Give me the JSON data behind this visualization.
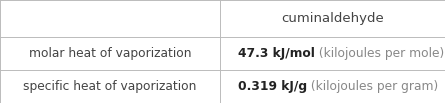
{
  "title": "cuminaldehyde",
  "rows": [
    {
      "label": "molar heat of vaporization",
      "value_bold": "47.3 kJ/mol",
      "value_light": " (kilojoules per mole)"
    },
    {
      "label": "specific heat of vaporization",
      "value_bold": "0.319 kJ/g",
      "value_light": " (kilojoules per gram)"
    }
  ],
  "col_split": 0.495,
  "bg_color": "#ffffff",
  "line_color": "#bbbbbb",
  "label_color": "#444444",
  "title_color": "#444444",
  "value_bold_color": "#222222",
  "value_light_color": "#888888",
  "font_size_title": 9.5,
  "font_size_label": 8.8,
  "font_size_value_bold": 8.8,
  "font_size_value_light": 8.8,
  "row_tops": [
    1.0,
    0.64,
    0.32,
    0.0
  ]
}
